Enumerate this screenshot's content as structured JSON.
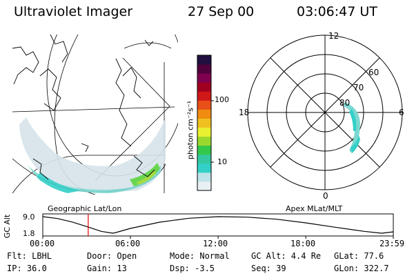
{
  "header": {
    "title": "Ultraviolet Imager",
    "date": "27 Sep 00",
    "time": "03:06:47 UT"
  },
  "panels": {
    "left_label": "Geographic Lat/Lon",
    "right_label": "Apex MLat/MLT"
  },
  "colorbar": {
    "unit_label": "photon cm⁻²s⁻¹",
    "tick_labels": [
      "100",
      "10"
    ],
    "scale": "log",
    "colors": [
      "#e8f0f4",
      "#bfe3ea",
      "#33d0c8",
      "#33c8a0",
      "#33c84a",
      "#9ad82e",
      "#e8f030",
      "#f0c020",
      "#f08c10",
      "#e85018",
      "#d01818",
      "#a00020",
      "#800050",
      "#50003a",
      "#201040"
    ]
  },
  "polar": {
    "mlt_labels": {
      "top": "12",
      "left": "18",
      "right": "6",
      "bottom": "0"
    },
    "lat_labels": [
      "60",
      "70",
      "80"
    ]
  },
  "chart_data": {
    "type": "line",
    "title": "",
    "ylabel": "GC Alt",
    "y_ticks": [
      "9.0",
      "1.8"
    ],
    "x_ticks": [
      "00:00",
      "06:00",
      "12:00",
      "18:00",
      "23:59"
    ],
    "ylim": [
      1.8,
      9.0
    ],
    "series": [
      {
        "x": [
          0,
          1,
          2,
          3,
          4,
          4.8,
          5,
          6,
          8,
          10,
          12,
          14,
          16,
          18,
          20,
          22,
          23.2,
          23.99
        ],
        "y": [
          9.0,
          8.2,
          6.7,
          4.7,
          2.6,
          1.8,
          2.1,
          3.9,
          6.6,
          8.3,
          9.0,
          8.8,
          7.9,
          6.3,
          4.4,
          2.6,
          1.8,
          2.4
        ]
      }
    ],
    "marker_time": 3.11,
    "marker_color": "#e00000"
  },
  "footer": {
    "rows": [
      [
        "Flt: LBHL",
        "Door: Open",
        "Mode: Normal",
        "GC Alt: 4.4 Re",
        "GLat:  77.6"
      ],
      [
        "IP: 36.0",
        "Gain: 13",
        "Dsp:   -3.5",
        "Seq: 39",
        "GLon: 322.7"
      ]
    ]
  }
}
